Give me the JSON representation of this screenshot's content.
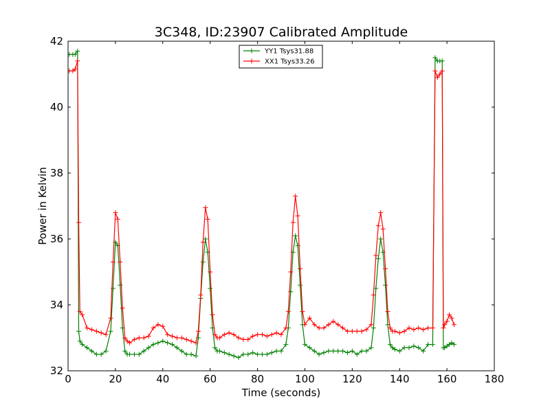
{
  "chart_data": {
    "type": "line",
    "title": "3C348, ID:23907 Calibrated Amplitude",
    "xlabel": "Time (seconds)",
    "ylabel": "Power in Kelvin",
    "xlim": [
      0,
      180
    ],
    "ylim": [
      32,
      42
    ],
    "xticks": [
      0,
      20,
      40,
      60,
      80,
      100,
      120,
      140,
      160,
      180
    ],
    "yticks": [
      32,
      34,
      36,
      38,
      40,
      42
    ],
    "grid": false,
    "legend_position": "top-center",
    "marker": "+",
    "series": [
      {
        "name": "YY1 Tsys31.88",
        "color": "#008000",
        "x": [
          0.5,
          2,
          3,
          4,
          4.5,
          5,
          6,
          8,
          10,
          12,
          14,
          16,
          18,
          19,
          20,
          21,
          22,
          23,
          24,
          25,
          26,
          28,
          30,
          32,
          34,
          36,
          38,
          40,
          42,
          44,
          46,
          48,
          50,
          52,
          54,
          55,
          56,
          57,
          58,
          59,
          60,
          61,
          62,
          63,
          64,
          66,
          68,
          70,
          72,
          74,
          76,
          78,
          80,
          82,
          84,
          86,
          88,
          90,
          92,
          93,
          94,
          95,
          96,
          97,
          98,
          99,
          100,
          102,
          104,
          106,
          108,
          110,
          112,
          114,
          116,
          118,
          120,
          122,
          124,
          126,
          128,
          129,
          130,
          131,
          132,
          133,
          134,
          135,
          136,
          137,
          138,
          140,
          142,
          144,
          146,
          148,
          150,
          152,
          154,
          155,
          156,
          157,
          158,
          158.5,
          159,
          160,
          161,
          162,
          163
        ],
        "y": [
          41.6,
          41.6,
          41.6,
          41.7,
          33.2,
          32.9,
          32.8,
          32.7,
          32.6,
          32.5,
          32.5,
          32.6,
          33.2,
          34.5,
          35.9,
          35.8,
          34.6,
          33.3,
          32.6,
          32.5,
          32.5,
          32.5,
          32.5,
          32.6,
          32.7,
          32.8,
          32.85,
          32.9,
          32.85,
          32.8,
          32.7,
          32.6,
          32.5,
          32.5,
          32.45,
          33.0,
          34.2,
          35.3,
          36.0,
          35.6,
          34.5,
          33.3,
          32.7,
          32.6,
          32.6,
          32.55,
          32.5,
          32.45,
          32.4,
          32.5,
          32.5,
          32.55,
          32.5,
          32.5,
          32.5,
          32.55,
          32.6,
          32.6,
          32.8,
          33.3,
          34.4,
          35.6,
          36.1,
          35.8,
          34.6,
          33.4,
          32.8,
          32.7,
          32.6,
          32.5,
          32.55,
          32.6,
          32.6,
          32.6,
          32.6,
          32.55,
          32.6,
          32.5,
          32.6,
          32.6,
          32.7,
          33.3,
          34.5,
          35.4,
          36.0,
          35.6,
          34.6,
          33.4,
          32.8,
          32.7,
          32.65,
          32.6,
          32.7,
          32.7,
          32.75,
          32.7,
          32.6,
          32.8,
          32.8,
          41.5,
          41.4,
          41.4,
          41.4,
          32.7,
          32.7,
          32.75,
          32.8,
          32.85,
          32.8
        ]
      },
      {
        "name": "XX1 Tsys33.26",
        "color": "#ff0000",
        "x": [
          0.5,
          2,
          3,
          4,
          4.5,
          5,
          6,
          8,
          10,
          12,
          14,
          16,
          18,
          19,
          20,
          21,
          22,
          23,
          24,
          25,
          26,
          28,
          30,
          32,
          34,
          36,
          38,
          40,
          42,
          44,
          46,
          48,
          50,
          52,
          54,
          55,
          56,
          57,
          58,
          59,
          60,
          61,
          62,
          63,
          64,
          66,
          68,
          70,
          72,
          74,
          76,
          78,
          80,
          82,
          84,
          86,
          88,
          90,
          92,
          93,
          94,
          95,
          96,
          97,
          98,
          99,
          100,
          102,
          104,
          106,
          108,
          110,
          112,
          114,
          116,
          118,
          120,
          122,
          124,
          126,
          128,
          129,
          130,
          131,
          132,
          133,
          134,
          135,
          136,
          137,
          138,
          140,
          142,
          144,
          146,
          148,
          150,
          152,
          154,
          155,
          156,
          157,
          158,
          158.5,
          159,
          160,
          161,
          162,
          163
        ],
        "y": [
          41.1,
          41.1,
          41.15,
          41.4,
          36.5,
          33.8,
          33.7,
          33.3,
          33.25,
          33.2,
          33.15,
          33.1,
          33.6,
          35.3,
          36.8,
          36.6,
          35.3,
          33.9,
          33.0,
          32.9,
          32.85,
          32.95,
          33.0,
          33.0,
          33.05,
          33.3,
          33.4,
          33.35,
          33.1,
          33.05,
          33.0,
          33.0,
          32.95,
          32.9,
          32.85,
          33.2,
          34.3,
          35.9,
          36.95,
          36.6,
          35.0,
          33.7,
          33.1,
          33.0,
          33.0,
          33.1,
          33.15,
          33.1,
          33.0,
          32.95,
          32.95,
          33.05,
          33.1,
          33.1,
          33.05,
          33.1,
          33.15,
          33.1,
          33.3,
          33.8,
          35.0,
          36.5,
          37.3,
          36.7,
          35.1,
          33.8,
          33.4,
          33.6,
          33.4,
          33.3,
          33.3,
          33.4,
          33.5,
          33.4,
          33.3,
          33.2,
          33.2,
          33.2,
          33.2,
          33.25,
          33.4,
          34.3,
          35.5,
          36.4,
          36.8,
          36.3,
          35.1,
          33.8,
          33.3,
          33.2,
          33.2,
          33.15,
          33.2,
          33.3,
          33.25,
          33.3,
          33.25,
          33.3,
          33.3,
          41.1,
          40.9,
          41.0,
          41.1,
          33.3,
          33.4,
          33.5,
          33.7,
          33.6,
          33.4
        ]
      }
    ]
  }
}
